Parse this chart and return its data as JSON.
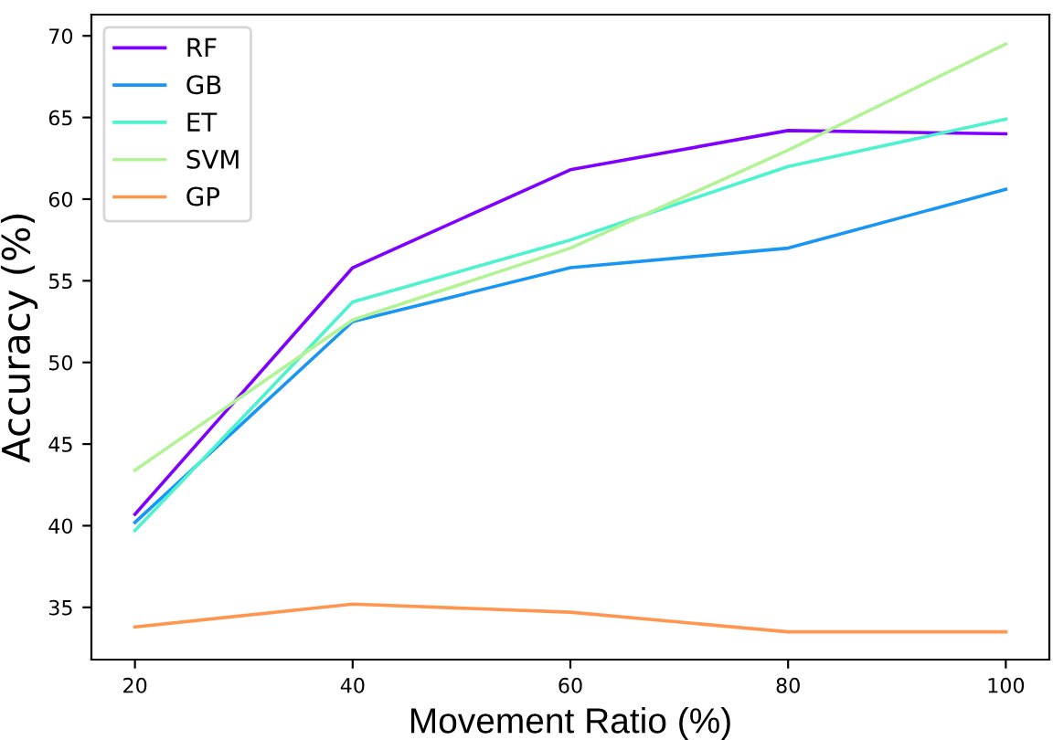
{
  "chart_data": {
    "type": "line",
    "xlabel": "Movement Ratio (%)",
    "ylabel": "Accuracy (%)",
    "x": [
      20,
      40,
      60,
      80,
      100
    ],
    "series": [
      {
        "name": "RF",
        "color": "#8000ff",
        "values": [
          40.7,
          55.8,
          61.8,
          64.2,
          64.0
        ]
      },
      {
        "name": "GB",
        "color": "#1996f3",
        "values": [
          40.2,
          52.5,
          55.8,
          57.0,
          60.6
        ]
      },
      {
        "name": "ET",
        "color": "#4df3ce",
        "values": [
          39.7,
          53.7,
          57.5,
          62.0,
          64.9
        ]
      },
      {
        "name": "SVM",
        "color": "#b2f396",
        "values": [
          43.4,
          52.6,
          57.0,
          63.0,
          69.5
        ]
      },
      {
        "name": "GP",
        "color": "#ff964f",
        "values": [
          33.8,
          35.2,
          34.7,
          33.5,
          33.5
        ]
      }
    ],
    "xlim": [
      16,
      104
    ],
    "ylim": [
      31.8,
      71.3
    ],
    "xticks": [
      20,
      40,
      60,
      80,
      100
    ],
    "yticks": [
      35,
      40,
      45,
      50,
      55,
      60,
      65,
      70
    ],
    "legend": "top left",
    "grid": false,
    "marker": "none",
    "line_style": "solid"
  }
}
